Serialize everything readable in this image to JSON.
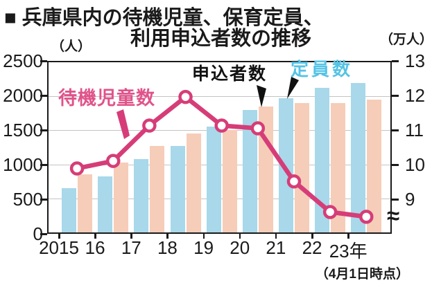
{
  "title": {
    "line1": "■ 兵庫県内の待機児童、保育定員、",
    "line2": "利用申込者数の推移"
  },
  "axes": {
    "left_unit": "（人）",
    "right_unit": "（万人）",
    "left_ticks": [
      "2500",
      "2000",
      "1500",
      "1000",
      "500",
      "0"
    ],
    "right_ticks": [
      "13",
      "12",
      "11",
      "10",
      "9"
    ],
    "break_symbol": "≈",
    "x_labels": [
      "2015",
      "16",
      "17",
      "18",
      "19",
      "20",
      "21",
      "22",
      "23年"
    ],
    "x_note": "（4月1日時点）"
  },
  "annotations": {
    "waiting_label": "待機児童数",
    "applicants_label": "申込者数",
    "capacity_label": "定員数"
  },
  "colors": {
    "waiting_line": "#d63d78",
    "waiting_text": "#e0538a",
    "capacity_bar": "#a8d8ea",
    "capacity_text": "#54c3e6",
    "applicants_bar": "#f6cdb8",
    "grid": "#c4c4c4",
    "axis": "#1a1a1a"
  },
  "chart_data": {
    "type": "combo (bar + line)",
    "title": "兵庫県内の待機児童、保育定員、利用申込者数の推移",
    "note": "4月1日時点",
    "categories": [
      "2015",
      "2016",
      "2017",
      "2018",
      "2019",
      "2020",
      "2021",
      "2022",
      "2023"
    ],
    "series": [
      {
        "name": "待機児童数",
        "type": "line",
        "axis": "left",
        "unit": "人",
        "values": [
          940,
          1050,
          1570,
          1990,
          1570,
          1530,
          750,
          300,
          230
        ]
      },
      {
        "name": "定員数",
        "type": "bar",
        "axis": "right",
        "unit": "万人",
        "values": [
          9.3,
          9.65,
          10.15,
          10.55,
          11.1,
          11.6,
          11.95,
          12.25,
          12.4
        ]
      },
      {
        "name": "申込者数",
        "type": "bar",
        "axis": "right",
        "unit": "万人",
        "values": [
          9.7,
          10.05,
          10.55,
          10.9,
          11.0,
          11.7,
          11.8,
          11.8,
          11.9
        ]
      }
    ],
    "left_axis": {
      "unit": "人",
      "range": [
        0,
        2500
      ],
      "tick_step": 500,
      "grid": true
    },
    "right_axis": {
      "unit": "万人",
      "range": [
        9,
        13
      ],
      "tick_step": 1,
      "axis_break_below": 9
    },
    "legend_position": "inside-plot annotations with leader arrows"
  }
}
